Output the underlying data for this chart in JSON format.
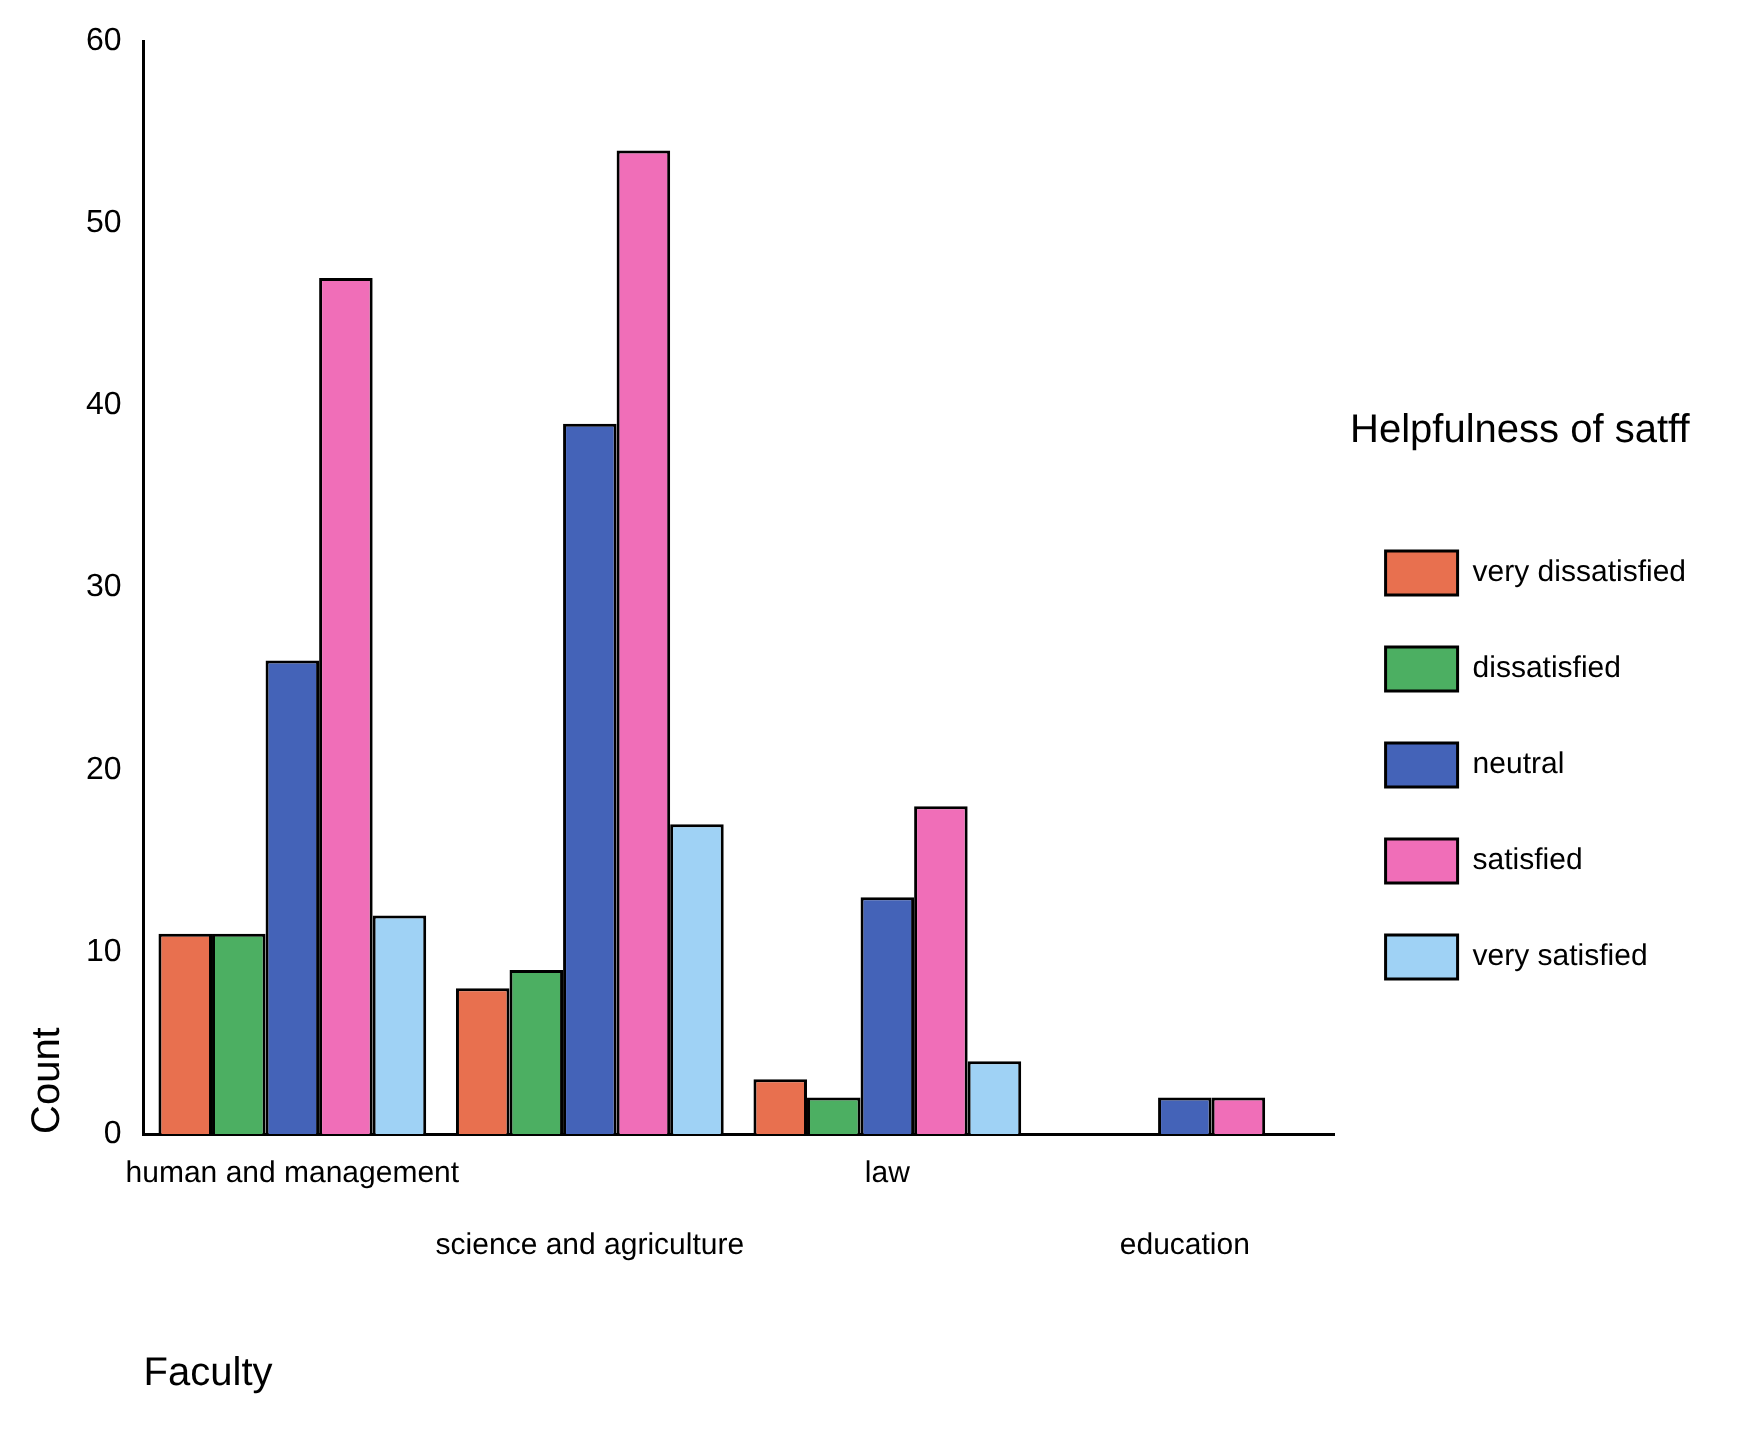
{
  "chart_data": {
    "type": "bar",
    "xlabel": "Faculty",
    "ylabel": "Count",
    "legend_title": "Helpfulness of satff",
    "legend": "right",
    "categories": [
      "human and management",
      "science and agriculture",
      "law",
      "education"
    ],
    "ylim": [
      0,
      60
    ],
    "yticks": [
      0,
      10,
      20,
      30,
      40,
      50,
      60
    ],
    "grid": false,
    "series": [
      {
        "name": "very dissatisfied",
        "color": "#e8704f",
        "values": [
          11,
          8,
          3,
          null
        ]
      },
      {
        "name": "dissatisfied",
        "color": "#4caf62",
        "values": [
          11,
          9,
          2,
          null
        ]
      },
      {
        "name": "neutral",
        "color": "#4463b8",
        "values": [
          26,
          39,
          13,
          2
        ]
      },
      {
        "name": "satisfied",
        "color": "#f06eb8",
        "values": [
          47,
          54,
          18,
          2
        ]
      },
      {
        "name": "very satisfied",
        "color": "#9fd2f5",
        "values": [
          12,
          17,
          4,
          null
        ]
      }
    ]
  }
}
